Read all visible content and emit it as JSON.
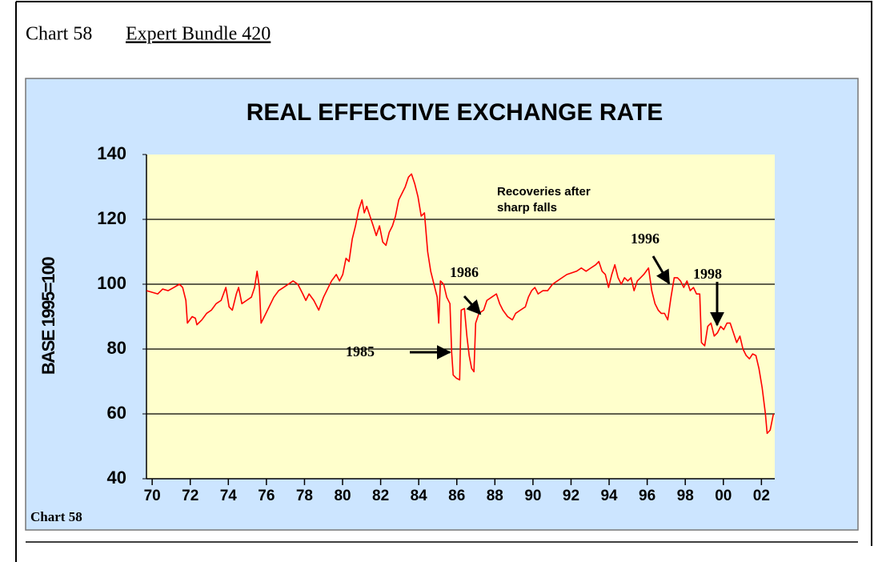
{
  "header": {
    "label": "Chart 58",
    "link": "Expert Bundle 420"
  },
  "chart_data": {
    "type": "line",
    "title": "REAL EFFECTIVE EXCHANGE RATE",
    "y_label": "BASE 1995=100",
    "footer": "Chart 58",
    "annotations": [
      "Recoveries after",
      "sharp falls",
      "1985",
      "1986",
      "1996",
      "1998"
    ],
    "xlim": [
      1969.7,
      2002.7
    ],
    "xticks": [
      {
        "value": 1970,
        "label": "70"
      },
      {
        "value": 1972,
        "label": "72"
      },
      {
        "value": 1974,
        "label": "74"
      },
      {
        "value": 1976,
        "label": "76"
      },
      {
        "value": 1978,
        "label": "78"
      },
      {
        "value": 1980,
        "label": "80"
      },
      {
        "value": 1982,
        "label": "82"
      },
      {
        "value": 1984,
        "label": "84"
      },
      {
        "value": 1986,
        "label": "86"
      },
      {
        "value": 1988,
        "label": "88"
      },
      {
        "value": 1990,
        "label": "90"
      },
      {
        "value": 1992,
        "label": "92"
      },
      {
        "value": 1994,
        "label": "94"
      },
      {
        "value": 1996,
        "label": "96"
      },
      {
        "value": 1998,
        "label": "98"
      },
      {
        "value": 2000,
        "label": "00"
      },
      {
        "value": 2002,
        "label": "02"
      }
    ],
    "ylim": [
      40,
      140
    ],
    "yticks": [
      40,
      60,
      80,
      100,
      120,
      140
    ],
    "grid": true,
    "x": [
      1969.71,
      1970.0,
      1970.29,
      1970.55,
      1970.84,
      1971.14,
      1971.43,
      1971.6,
      1971.77,
      1971.85,
      1972.1,
      1972.27,
      1972.35,
      1972.61,
      1972.86,
      1973.11,
      1973.36,
      1973.62,
      1973.87,
      1974.04,
      1974.21,
      1974.42,
      1974.54,
      1974.71,
      1974.96,
      1975.21,
      1975.38,
      1975.51,
      1975.63,
      1975.72,
      1975.89,
      1976.14,
      1976.39,
      1976.64,
      1976.9,
      1977.15,
      1977.4,
      1977.65,
      1977.91,
      1978.07,
      1978.24,
      1978.49,
      1978.75,
      1979.0,
      1979.25,
      1979.42,
      1979.67,
      1979.84,
      1980.01,
      1980.18,
      1980.34,
      1980.51,
      1980.68,
      1980.85,
      1981.02,
      1981.14,
      1981.27,
      1981.44,
      1981.61,
      1981.77,
      1981.94,
      1982.11,
      1982.28,
      1982.45,
      1982.62,
      1982.78,
      1982.95,
      1983.12,
      1983.29,
      1983.46,
      1983.62,
      1983.79,
      1983.96,
      1984.13,
      1984.3,
      1984.47,
      1984.63,
      1984.8,
      1984.97,
      1985.05,
      1985.14,
      1985.31,
      1985.47,
      1985.64,
      1985.73,
      1985.81,
      1985.98,
      1986.15,
      1986.23,
      1986.4,
      1986.53,
      1986.65,
      1986.78,
      1986.9,
      1986.99,
      1987.16,
      1987.41,
      1987.58,
      1987.83,
      1988.08,
      1988.25,
      1988.42,
      1988.67,
      1988.92,
      1989.09,
      1989.34,
      1989.6,
      1989.76,
      1989.93,
      1990.1,
      1990.27,
      1990.52,
      1990.77,
      1991.03,
      1991.28,
      1991.53,
      1991.78,
      1992.03,
      1992.29,
      1992.54,
      1992.79,
      1993.04,
      1993.3,
      1993.46,
      1993.63,
      1993.8,
      1993.97,
      1994.14,
      1994.3,
      1994.47,
      1994.64,
      1994.81,
      1994.98,
      1995.15,
      1995.31,
      1995.48,
      1995.65,
      1995.82,
      1996.07,
      1996.24,
      1996.41,
      1996.58,
      1996.74,
      1996.91,
      1997.08,
      1997.25,
      1997.42,
      1997.59,
      1997.75,
      1997.92,
      1998.09,
      1998.26,
      1998.43,
      1998.59,
      1998.76,
      1998.85,
      1999.02,
      1999.18,
      1999.35,
      1999.52,
      1999.69,
      1999.86,
      2000.02,
      2000.19,
      2000.36,
      2000.53,
      2000.7,
      2000.87,
      2001.03,
      2001.2,
      2001.37,
      2001.54,
      2001.71,
      2001.87,
      2002.04,
      2002.21,
      2002.3,
      2002.46,
      2002.63
    ],
    "series": [
      {
        "color": "#ff0000",
        "values": [
          98,
          97.5,
          97,
          98.5,
          98,
          99,
          100,
          99,
          95,
          88,
          90,
          89.5,
          87.5,
          89,
          91,
          92,
          94,
          95,
          99,
          93,
          92,
          97,
          99,
          94,
          95,
          96,
          99,
          104,
          99,
          88,
          90,
          93,
          96,
          98,
          99,
          100,
          101,
          100,
          97,
          95,
          97,
          95,
          92,
          96,
          99,
          101,
          103,
          101,
          103,
          108,
          107,
          114,
          118,
          123,
          126,
          122,
          124,
          121,
          118,
          115,
          118,
          113,
          112,
          116,
          118,
          121,
          126,
          128,
          130,
          133,
          134,
          131,
          127,
          121,
          122,
          110,
          104,
          100,
          96,
          88,
          101,
          100,
          96,
          94,
          79,
          72,
          71,
          70.5,
          92,
          92.5,
          84,
          78,
          74,
          73,
          88,
          91,
          92,
          95,
          96,
          97,
          94,
          92,
          90,
          89,
          91,
          92,
          93,
          96,
          98,
          99,
          97,
          98,
          98,
          100,
          101,
          102,
          103,
          103.5,
          104,
          105,
          104,
          105,
          106,
          107,
          104,
          103,
          99,
          103,
          106,
          102,
          100,
          102,
          101,
          102,
          98,
          101,
          102,
          103,
          105,
          98,
          94,
          92,
          91,
          91,
          89,
          96,
          102,
          102,
          101,
          99,
          101,
          98,
          99,
          97,
          97,
          82,
          81,
          87,
          88,
          84,
          85,
          87,
          86,
          88,
          88,
          85,
          82,
          84,
          80,
          78,
          77,
          78.5,
          78,
          74,
          68,
          60,
          54,
          55,
          60
        ]
      }
    ]
  }
}
